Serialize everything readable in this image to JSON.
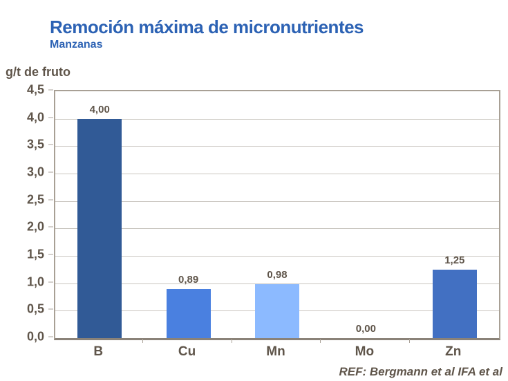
{
  "header": {
    "title": "Remoción máxima de micronutrientes",
    "subtitle": "Manzanas"
  },
  "footer": {
    "reference": "REF: Bergmann et al IFA et al"
  },
  "colors": {
    "title_blue": "#2c62b4",
    "text_brown": "#5f554a",
    "gridline": "#c9c5bf",
    "tick_mark": "#aaa298",
    "bar_colors": [
      "#315a96",
      "#4a80e0",
      "#8cbaff",
      "#4a80e0",
      "#4270c2"
    ]
  },
  "chart_data": {
    "type": "bar",
    "title": "Remoción máxima de micronutrientes",
    "subtitle": "Manzanas",
    "ylabel": "g/t de fruto",
    "xlabel": "",
    "categories": [
      "B",
      "Cu",
      "Mn",
      "Mo",
      "Zn"
    ],
    "values": [
      4.0,
      0.89,
      0.98,
      0.0,
      1.25
    ],
    "value_labels": [
      "4,00",
      "0,89",
      "0,98",
      "0,00",
      "1,25"
    ],
    "ylim": [
      0,
      4.5
    ],
    "ytick_step": 0.5,
    "ytick_labels": [
      "0,0",
      "0,5",
      "1,0",
      "1,5",
      "2,0",
      "2,5",
      "3,0",
      "3,5",
      "4,0",
      "4,5"
    ],
    "grid": true,
    "legend": false,
    "bar_width_fraction": 0.5,
    "decimal_separator": ","
  }
}
